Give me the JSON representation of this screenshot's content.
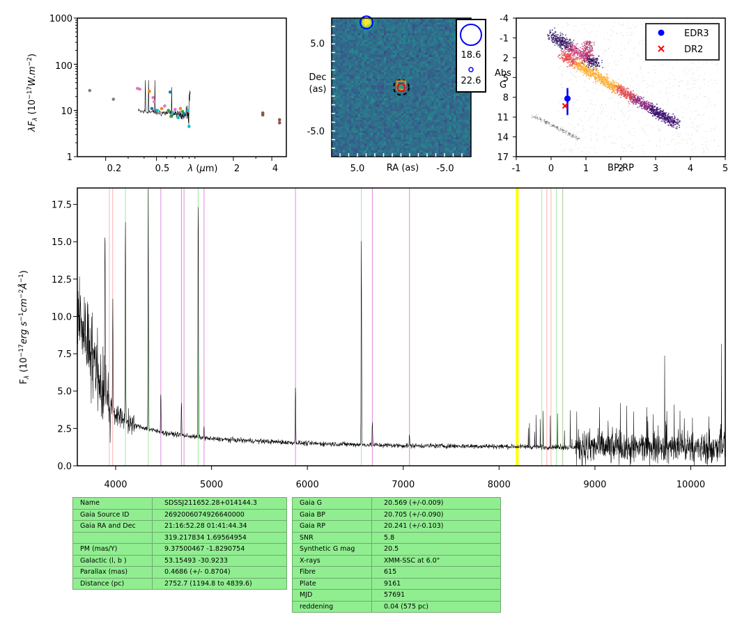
{
  "sed": {
    "ylabel": "λF_λ (10^-17 W.m^-2)",
    "xlabel": "λ (μm)",
    "y_ticks": [
      "1",
      "10",
      "100",
      "1000"
    ],
    "x_ticks": [
      "0.2",
      "0.5",
      "2",
      "4"
    ],
    "ylim": [
      1,
      1000
    ],
    "xlim_um": [
      0.12,
      5.2
    ],
    "x_scale": "log",
    "y_scale": "log",
    "phot_points": [
      {
        "x": 0.15,
        "y": 27,
        "color": "#7f7f7f"
      },
      {
        "x": 0.23,
        "y": 17.5,
        "color": "#7f7f7f"
      },
      {
        "x": 0.355,
        "y": 30,
        "color": "#e377c2"
      },
      {
        "x": 0.37,
        "y": 29,
        "color": "#e377c2"
      },
      {
        "x": 0.44,
        "y": 26,
        "color": "#ff7f0e"
      },
      {
        "x": 0.47,
        "y": 19,
        "color": "#e377c2"
      },
      {
        "x": 0.48,
        "y": 15.5,
        "color": "#e377c2"
      },
      {
        "x": 0.46,
        "y": 11,
        "color": "#1f77b4"
      },
      {
        "x": 0.51,
        "y": 10,
        "color": "#17becf"
      },
      {
        "x": 0.55,
        "y": 11,
        "color": "#ff7f0e"
      },
      {
        "x": 0.58,
        "y": 12.5,
        "color": "#e377c2"
      },
      {
        "x": 0.62,
        "y": 10,
        "color": "#2ca02c"
      },
      {
        "x": 0.64,
        "y": 25,
        "color": "#1f77b4"
      },
      {
        "x": 0.65,
        "y": 7.5,
        "color": "#2ca02c"
      },
      {
        "x": 0.67,
        "y": 9,
        "color": "#17becf"
      },
      {
        "x": 0.7,
        "y": 10.5,
        "color": "#e377c2"
      },
      {
        "x": 0.74,
        "y": 7,
        "color": "#17becf"
      },
      {
        "x": 0.77,
        "y": 11,
        "color": "#ff7f0e"
      },
      {
        "x": 0.8,
        "y": 9.5,
        "color": "#2ca02c"
      },
      {
        "x": 0.82,
        "y": 8.5,
        "color": "#1f77b4"
      },
      {
        "x": 0.88,
        "y": 10,
        "color": "#17becf"
      },
      {
        "x": 0.9,
        "y": 4.5,
        "color": "#17becf"
      },
      {
        "x": 3.4,
        "y": 8.8,
        "color": "#8c564b"
      },
      {
        "x": 3.4,
        "y": 8.0,
        "color": "#8c564b"
      },
      {
        "x": 4.6,
        "y": 6.3,
        "color": "#8c564b"
      },
      {
        "x": 4.6,
        "y": 5.4,
        "color": "#8c564b"
      }
    ]
  },
  "image": {
    "ylabel": "Dec (as)",
    "xlabel": "RA (as)",
    "x_ticks": [
      "5.0",
      "-5.0"
    ],
    "y_ticks": [
      "5.0",
      "-5.0"
    ],
    "xlim": [
      8.0,
      -8.0
    ],
    "ylim": [
      -8.0,
      8.0
    ],
    "legend_mags": [
      "18.6",
      "22.6"
    ],
    "bright_source": {
      "x": 4.0,
      "y": 7.5
    },
    "target_source": {
      "x": 0.0,
      "y": 0.0
    }
  },
  "hr": {
    "ylabel": "Abs G",
    "xlabel": "BP-RP",
    "x_ticks": [
      "-1",
      "0",
      "1",
      "2",
      "3",
      "4",
      "5"
    ],
    "y_ticks": [
      "-4",
      "-1",
      "2",
      "5",
      "8",
      "11",
      "14",
      "17"
    ],
    "xlim": [
      -1,
      5
    ],
    "ylim": [
      17,
      -4
    ],
    "legend": [
      "EDR3",
      "DR2"
    ],
    "edr3_point": {
      "x": 0.47,
      "y": 8.2,
      "yerr": [
        6.6,
        10.7
      ]
    },
    "dr2_point": {
      "x": 0.4,
      "y": 9.3
    }
  },
  "spectrum": {
    "ylabel": "F_λ (10^-17 erg s^-1 cm^-2 Å^-1)",
    "x_ticks": [
      "4000",
      "5000",
      "6000",
      "7000",
      "8000",
      "9000",
      "10000"
    ],
    "y_ticks": [
      "0.0",
      "2.5",
      "5.0",
      "7.5",
      "10.0",
      "12.5",
      "15.0",
      "17.5"
    ],
    "xlim": [
      3600,
      10360
    ],
    "ylim": [
      0,
      18.6
    ],
    "line_markers": [
      {
        "x": 3934,
        "color": "#ffb0b0"
      },
      {
        "x": 3969,
        "color": "#ffb0b0"
      },
      {
        "x": 4102,
        "color": "#a0e8a0"
      },
      {
        "x": 4340,
        "color": "#a0e8a0"
      },
      {
        "x": 4471,
        "color": "#dd88dd"
      },
      {
        "x": 4686,
        "color": "#dd88dd"
      },
      {
        "x": 4713,
        "color": "#dd88dd"
      },
      {
        "x": 4861,
        "color": "#a0e8a0"
      },
      {
        "x": 4922,
        "color": "#dd88dd"
      },
      {
        "x": 5876,
        "color": "#dd88dd"
      },
      {
        "x": 6563,
        "color": "#a0e8a0"
      },
      {
        "x": 6678,
        "color": "#dd88dd"
      },
      {
        "x": 7065,
        "color": "#dd88dd"
      },
      {
        "x": 8183,
        "color": "#ffff00"
      },
      {
        "x": 8195,
        "color": "#ffff00"
      },
      {
        "x": 8446,
        "color": "#a0e8a0"
      },
      {
        "x": 8498,
        "color": "#ffb0b0"
      },
      {
        "x": 8542,
        "color": "#ffb0b0"
      },
      {
        "x": 8598,
        "color": "#a0e8a0"
      },
      {
        "x": 8662,
        "color": "#ffb0b0"
      },
      {
        "x": 8665,
        "color": "#a0e8a0"
      }
    ],
    "emission_lines": [
      {
        "x": 3889,
        "h": 18.6
      },
      {
        "x": 3970,
        "h": 11.5
      },
      {
        "x": 4102,
        "h": 17.1
      },
      {
        "x": 4340,
        "h": 18.6
      },
      {
        "x": 4471,
        "h": 5.0
      },
      {
        "x": 4686,
        "h": 4.3
      },
      {
        "x": 4861,
        "h": 18.3
      },
      {
        "x": 4922,
        "h": 2.6
      },
      {
        "x": 5876,
        "h": 5.4
      },
      {
        "x": 6563,
        "h": 15.2
      },
      {
        "x": 6678,
        "h": 3.0
      },
      {
        "x": 7065,
        "h": 2.0
      }
    ],
    "continuum": [
      {
        "x": 3600,
        "y": 10.0
      },
      {
        "x": 3700,
        "y": 8.5
      },
      {
        "x": 3800,
        "y": 6.5
      },
      {
        "x": 3900,
        "y": 4.5
      },
      {
        "x": 4000,
        "y": 3.4
      },
      {
        "x": 4200,
        "y": 2.7
      },
      {
        "x": 4500,
        "y": 2.2
      },
      {
        "x": 5000,
        "y": 1.8
      },
      {
        "x": 6000,
        "y": 1.5
      },
      {
        "x": 7000,
        "y": 1.35
      },
      {
        "x": 8000,
        "y": 1.3
      },
      {
        "x": 9000,
        "y": 1.2
      },
      {
        "x": 10360,
        "y": 1.2
      }
    ]
  },
  "table1": [
    {
      "k": "Name",
      "v": "SDSSJ211652.28+014144.3"
    },
    {
      "k": "Gaia Source ID",
      "v": "2692006074926640000"
    },
    {
      "k": "Gaia RA and Dec",
      "v": "21:16:52.28    01:41:44.34"
    },
    {
      "k": "",
      "v": "319.217834    1.69564954"
    },
    {
      "k": "PM (mas/Y)",
      "v": "9.37500467    -1.8290754"
    },
    {
      "k": "Galactic (l, b )",
      "v": "53.15493    -30.9233"
    },
    {
      "k": "Parallax (mas)",
      "v": "0.4686 (+/- 0.8704)"
    },
    {
      "k": "Distance (pc)",
      "v": "2752.7 (1194.8 to 4839.6)"
    }
  ],
  "table2": [
    {
      "k": "Gaia G",
      "v": "20.569 (+/-0.009)"
    },
    {
      "k": "Gaia BP",
      "v": "20.705 (+/-0.090)"
    },
    {
      "k": "Gaia RP",
      "v": "20.241 (+/-0.103)"
    },
    {
      "k": "SNR",
      "v": "5.8"
    },
    {
      "k": "Synthetic G mag",
      "v": "20.5"
    },
    {
      "k": "X-rays",
      "v": "XMM-SSC at 6.0\""
    },
    {
      "k": "Fibre",
      "v": "615"
    },
    {
      "k": "Plate",
      "v": "9161"
    },
    {
      "k": "MJD",
      "v": "57691"
    },
    {
      "k": "reddening",
      "v": "0.04 (575 pc)"
    }
  ],
  "chart_data": [
    {
      "type": "scatter",
      "title": "",
      "xlabel": "λ (μm)",
      "ylabel": "λF_λ (10^-17 W.m^-2)",
      "x_scale": "log",
      "y_scale": "log",
      "xlim": [
        0.12,
        5.2
      ],
      "ylim": [
        1,
        1000
      ]
    },
    {
      "type": "heatmap",
      "title": "",
      "xlabel": "RA (as)",
      "ylabel": "Dec (as)",
      "xlim": [
        8.0,
        -8.0
      ],
      "ylim": [
        -8.0,
        8.0
      ],
      "legend": [
        "18.6",
        "22.6"
      ]
    },
    {
      "type": "scatter",
      "title": "",
      "xlabel": "BP-RP",
      "ylabel": "Abs G",
      "xlim": [
        -1,
        5
      ],
      "ylim": [
        17,
        -4
      ],
      "series": [
        {
          "name": "EDR3",
          "x": [
            0.47
          ],
          "y": [
            8.2
          ]
        },
        {
          "name": "DR2",
          "x": [
            0.4
          ],
          "y": [
            9.3
          ]
        }
      ]
    },
    {
      "type": "line",
      "title": "",
      "xlabel": "",
      "ylabel": "F_λ (10^-17 erg s^-1 cm^-2 Å^-1)",
      "xlim": [
        3600,
        10360
      ],
      "ylim": [
        0,
        18.6
      ],
      "grid": false
    }
  ]
}
